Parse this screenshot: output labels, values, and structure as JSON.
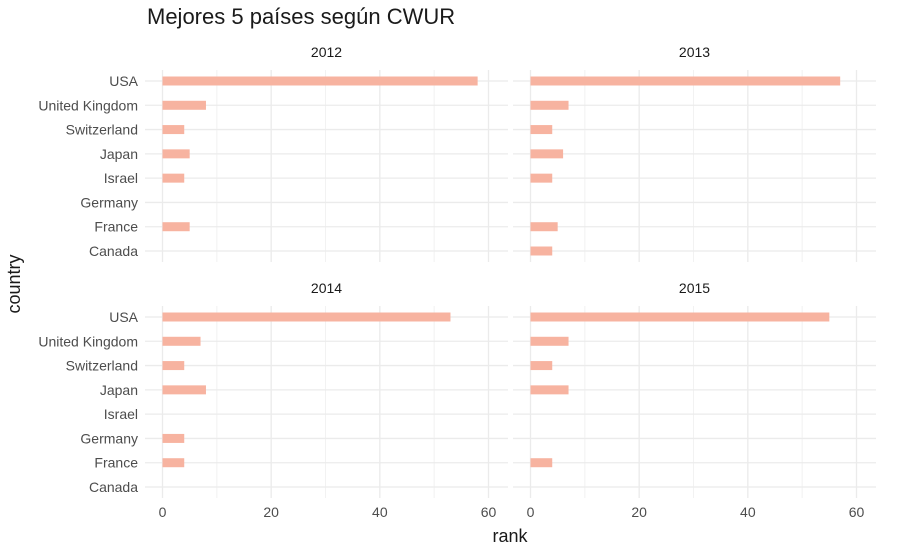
{
  "chart_data": {
    "type": "bar",
    "title": "Mejores 5 países según CWUR",
    "xlabel": "rank",
    "ylabel": "country",
    "categories": [
      "USA",
      "United Kingdom",
      "Switzerland",
      "Japan",
      "Israel",
      "Germany",
      "France",
      "Canada"
    ],
    "xlim": [
      0,
      60
    ],
    "x_ticks": [
      "0",
      "20",
      "40",
      "60"
    ],
    "bar_color": "#f7b3a0",
    "grid": true,
    "orientation": "horizontal",
    "panels": [
      {
        "label": "2012",
        "values": [
          58,
          8,
          4,
          5,
          4,
          0,
          5,
          0
        ]
      },
      {
        "label": "2013",
        "values": [
          57,
          7,
          4,
          6,
          4,
          0,
          5,
          4
        ]
      },
      {
        "label": "2014",
        "values": [
          53,
          7,
          4,
          8,
          0,
          4,
          4,
          0
        ]
      },
      {
        "label": "2015",
        "values": [
          55,
          7,
          4,
          7,
          0,
          0,
          4,
          0
        ]
      }
    ]
  }
}
